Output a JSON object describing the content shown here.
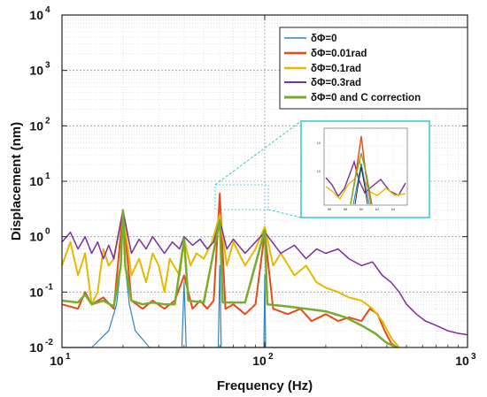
{
  "chart_data": {
    "type": "line",
    "xlabel": "Frequency (Hz)",
    "ylabel": "Displacement (nm)",
    "x_scale": "log",
    "y_scale": "log",
    "xlim": [
      10,
      1000
    ],
    "ylim": [
      0.01,
      10000
    ],
    "grid": true,
    "legend_position": "top-right",
    "x_ticks": [
      {
        "base": "10",
        "exp": "1"
      },
      {
        "base": "10",
        "exp": "2"
      },
      {
        "base": "10",
        "exp": "3"
      }
    ],
    "y_ticks": [
      {
        "base": "10",
        "exp": "-2"
      },
      {
        "base": "10",
        "exp": "-1"
      },
      {
        "base": "10",
        "exp": "0"
      },
      {
        "base": "10",
        "exp": "1"
      },
      {
        "base": "10",
        "exp": "2"
      },
      {
        "base": "10",
        "exp": "3"
      },
      {
        "base": "10",
        "exp": "4"
      }
    ],
    "series": [
      {
        "name": "δΦ=0",
        "color": "#2e86c1",
        "width": 1.2,
        "points": [
          [
            10,
            0.005
          ],
          [
            14,
            0.008
          ],
          [
            17,
            0.02
          ],
          [
            18.6,
            0.06
          ],
          [
            19.5,
            0.3
          ],
          [
            20,
            3
          ],
          [
            20.5,
            0.3
          ],
          [
            21.5,
            0.06
          ],
          [
            23,
            0.02
          ],
          [
            27,
            0.008
          ],
          [
            35,
            0.005
          ],
          [
            39,
            0.01
          ],
          [
            40,
            0.15
          ],
          [
            41,
            0.01
          ],
          [
            59,
            0.01
          ],
          [
            60,
            0.3
          ],
          [
            61,
            0.01
          ],
          [
            99,
            0.01
          ],
          [
            100,
            0.2
          ],
          [
            101,
            0.01
          ],
          [
            200,
            0.005
          ]
        ]
      },
      {
        "name": "δΦ=0.01rad",
        "color": "#e64a19",
        "width": 2.0,
        "points": [
          [
            10,
            0.06
          ],
          [
            12,
            0.05
          ],
          [
            13,
            0.1
          ],
          [
            14,
            0.06
          ],
          [
            16,
            0.08
          ],
          [
            18,
            0.05
          ],
          [
            20,
            3
          ],
          [
            22,
            0.07
          ],
          [
            25,
            0.05
          ],
          [
            28,
            0.07
          ],
          [
            32,
            0.05
          ],
          [
            36,
            0.07
          ],
          [
            40,
            0.2
          ],
          [
            44,
            0.05
          ],
          [
            48,
            0.07
          ],
          [
            52,
            0.05
          ],
          [
            56,
            0.07
          ],
          [
            60,
            6
          ],
          [
            64,
            0.05
          ],
          [
            70,
            0.06
          ],
          [
            80,
            0.04
          ],
          [
            90,
            0.06
          ],
          [
            100,
            1.2
          ],
          [
            110,
            0.05
          ],
          [
            130,
            0.04
          ],
          [
            150,
            0.05
          ],
          [
            170,
            0.03
          ],
          [
            200,
            0.04
          ],
          [
            230,
            0.03
          ],
          [
            260,
            0.035
          ],
          [
            300,
            0.03
          ],
          [
            330,
            0.05
          ],
          [
            360,
            0.04
          ],
          [
            390,
            0.02
          ],
          [
            420,
            0.012
          ],
          [
            450,
            0.01
          ]
        ]
      },
      {
        "name": "δΦ=0.1rad",
        "color": "#e6b800",
        "width": 2.0,
        "points": [
          [
            10,
            0.3
          ],
          [
            11,
            0.8
          ],
          [
            12,
            0.2
          ],
          [
            13,
            0.5
          ],
          [
            14,
            0.06
          ],
          [
            15,
            0.1
          ],
          [
            16,
            0.6
          ],
          [
            17,
            0.3
          ],
          [
            18,
            0.4
          ],
          [
            20,
            3
          ],
          [
            22,
            0.2
          ],
          [
            24,
            0.4
          ],
          [
            26,
            0.15
          ],
          [
            28,
            0.5
          ],
          [
            30,
            0.3
          ],
          [
            32,
            0.1
          ],
          [
            34,
            0.4
          ],
          [
            38,
            0.2
          ],
          [
            40,
            0.9
          ],
          [
            43,
            0.3
          ],
          [
            46,
            0.5
          ],
          [
            50,
            0.4
          ],
          [
            55,
            0.8
          ],
          [
            60,
            2.5
          ],
          [
            65,
            0.3
          ],
          [
            70,
            0.8
          ],
          [
            80,
            0.3
          ],
          [
            90,
            0.6
          ],
          [
            100,
            1.5
          ],
          [
            110,
            0.3
          ],
          [
            120,
            0.5
          ],
          [
            140,
            0.2
          ],
          [
            160,
            0.3
          ],
          [
            180,
            0.15
          ],
          [
            200,
            0.12
          ],
          [
            230,
            0.1
          ],
          [
            260,
            0.08
          ],
          [
            300,
            0.07
          ],
          [
            340,
            0.05
          ],
          [
            380,
            0.03
          ],
          [
            420,
            0.015
          ],
          [
            460,
            0.01
          ]
        ]
      },
      {
        "name": "δΦ=0.3rad",
        "color": "#7d2e9e",
        "width": 1.5,
        "points": [
          [
            10,
            0.8
          ],
          [
            11,
            1.2
          ],
          [
            12,
            0.6
          ],
          [
            13,
            1.0
          ],
          [
            14,
            0.5
          ],
          [
            15,
            0.8
          ],
          [
            16,
            0.4
          ],
          [
            17,
            0.7
          ],
          [
            18,
            0.4
          ],
          [
            20,
            3
          ],
          [
            22,
            0.5
          ],
          [
            24,
            0.9
          ],
          [
            26,
            0.6
          ],
          [
            28,
            1.0
          ],
          [
            30,
            0.7
          ],
          [
            32,
            0.5
          ],
          [
            35,
            0.8
          ],
          [
            38,
            0.6
          ],
          [
            40,
            1.0
          ],
          [
            44,
            0.7
          ],
          [
            48,
            0.9
          ],
          [
            52,
            0.6
          ],
          [
            56,
            0.8
          ],
          [
            60,
            2.0
          ],
          [
            65,
            0.6
          ],
          [
            70,
            0.9
          ],
          [
            80,
            0.5
          ],
          [
            90,
            0.8
          ],
          [
            100,
            1.2
          ],
          [
            120,
            0.5
          ],
          [
            140,
            0.7
          ],
          [
            160,
            0.4
          ],
          [
            180,
            0.6
          ],
          [
            200,
            0.5
          ],
          [
            230,
            0.6
          ],
          [
            260,
            0.4
          ],
          [
            300,
            0.3
          ],
          [
            340,
            0.35
          ],
          [
            380,
            0.2
          ],
          [
            420,
            0.15
          ],
          [
            460,
            0.1
          ],
          [
            500,
            0.06
          ],
          [
            560,
            0.04
          ],
          [
            620,
            0.03
          ],
          [
            700,
            0.025
          ],
          [
            800,
            0.02
          ],
          [
            900,
            0.018
          ],
          [
            1000,
            0.017
          ]
        ]
      },
      {
        "name": "δΦ=0 and C correction",
        "color": "#77ad2b",
        "width": 2.5,
        "points": [
          [
            10,
            0.07
          ],
          [
            12,
            0.065
          ],
          [
            13,
            0.09
          ],
          [
            14,
            0.06
          ],
          [
            16,
            0.07
          ],
          [
            18,
            0.055
          ],
          [
            19.5,
            0.3
          ],
          [
            20,
            3
          ],
          [
            20.5,
            0.3
          ],
          [
            22,
            0.07
          ],
          [
            25,
            0.06
          ],
          [
            28,
            0.065
          ],
          [
            32,
            0.06
          ],
          [
            36,
            0.06
          ],
          [
            40,
            0.9
          ],
          [
            42,
            0.07
          ],
          [
            50,
            0.065
          ],
          [
            60,
            2.0
          ],
          [
            62,
            0.065
          ],
          [
            80,
            0.065
          ],
          [
            100,
            1.3
          ],
          [
            103,
            0.06
          ],
          [
            130,
            0.055
          ],
          [
            160,
            0.05
          ],
          [
            200,
            0.045
          ],
          [
            250,
            0.035
          ],
          [
            300,
            0.025
          ],
          [
            350,
            0.018
          ],
          [
            400,
            0.012
          ],
          [
            450,
            0.008
          ]
        ]
      }
    ]
  }
}
